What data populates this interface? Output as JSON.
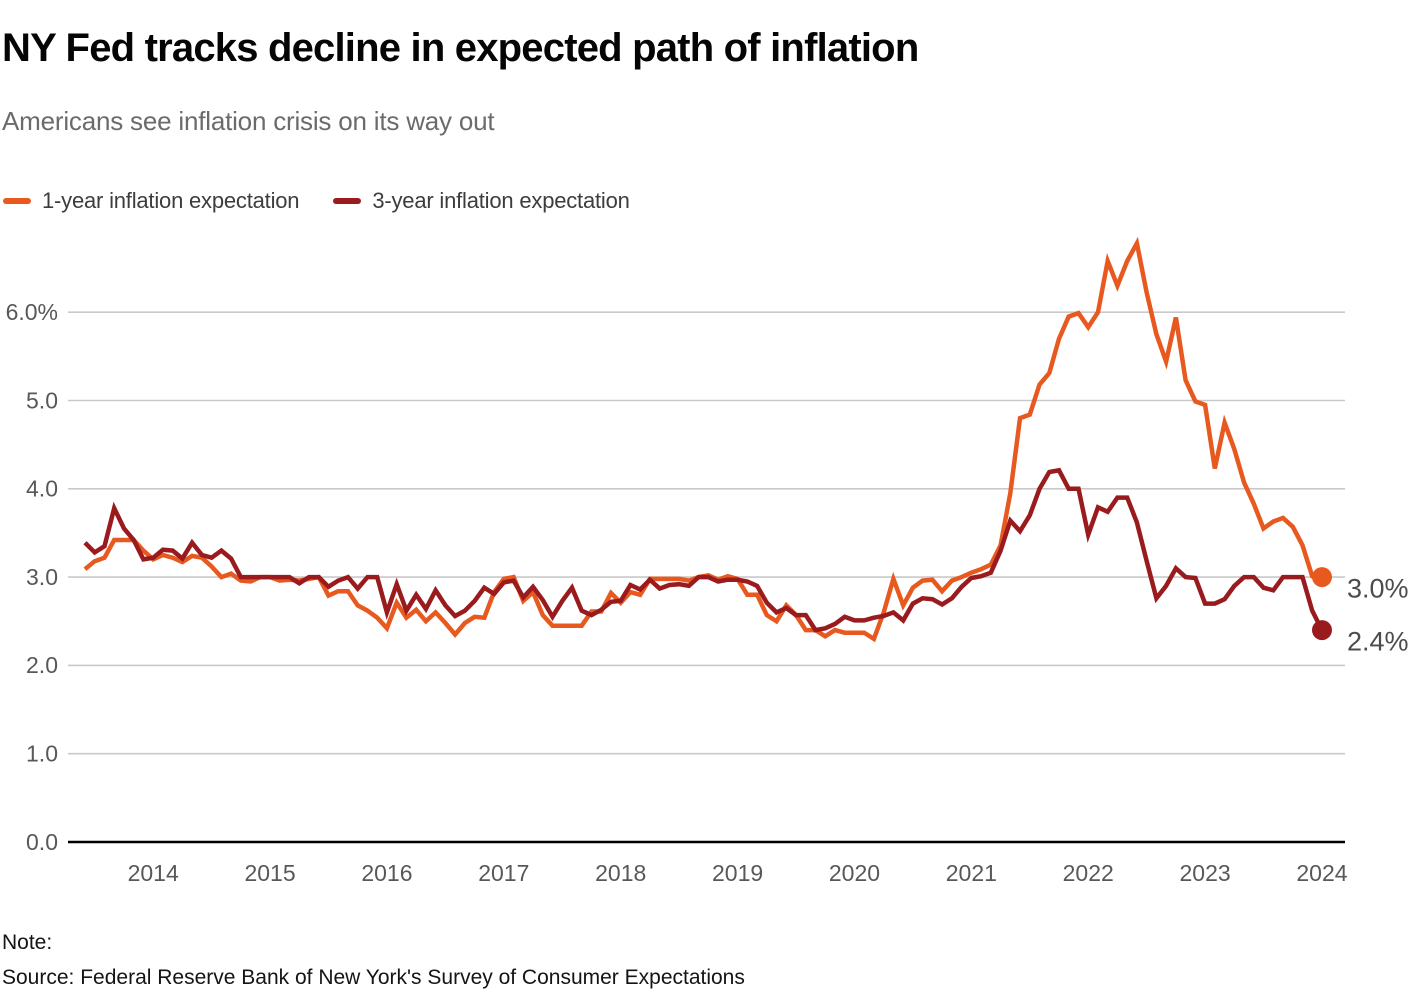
{
  "header": {
    "title": "NY Fed tracks decline in expected path of inflation",
    "subtitle": "Americans see inflation crisis on its way out"
  },
  "legend": [
    {
      "label": "1-year inflation expectation",
      "color": "#E8591F"
    },
    {
      "label": "3-year inflation expectation",
      "color": "#9A1B1E"
    }
  ],
  "chart_data": {
    "type": "line",
    "title": "NY Fed tracks decline in expected path of inflation",
    "subtitle": "Americans see inflation crisis on its way out",
    "frequency": "monthly",
    "x_start": "2013-06",
    "x_end": "2024-01",
    "xlabel": "",
    "ylabel": "",
    "ylim": [
      0,
      6.9
    ],
    "grid": true,
    "y_ticks": [
      {
        "label": "6.0%",
        "value": 6
      },
      {
        "label": "5.0",
        "value": 5
      },
      {
        "label": "4.0",
        "value": 4
      },
      {
        "label": "3.0",
        "value": 3
      },
      {
        "label": "2.0",
        "value": 2
      },
      {
        "label": "1.0",
        "value": 1
      },
      {
        "label": "0.0",
        "value": 0
      }
    ],
    "x_tick_years": [
      "2014",
      "2015",
      "2016",
      "2017",
      "2018",
      "2019",
      "2020",
      "2021",
      "2022",
      "2023",
      "2024"
    ],
    "series": [
      {
        "name": "1-year inflation expectation",
        "color": "#E8591F",
        "end_label": "3.0%",
        "values": [
          3.09,
          3.18,
          3.22,
          3.42,
          3.42,
          3.42,
          3.3,
          3.2,
          3.25,
          3.22,
          3.17,
          3.24,
          3.22,
          3.12,
          3.0,
          3.04,
          2.96,
          2.95,
          3.0,
          3.0,
          2.96,
          2.97,
          2.96,
          2.98,
          3.0,
          2.79,
          2.84,
          2.84,
          2.68,
          2.62,
          2.54,
          2.42,
          2.71,
          2.54,
          2.63,
          2.5,
          2.6,
          2.48,
          2.35,
          2.48,
          2.55,
          2.54,
          2.83,
          2.98,
          3.0,
          2.73,
          2.83,
          2.57,
          2.45,
          2.45,
          2.45,
          2.45,
          2.61,
          2.61,
          2.82,
          2.71,
          2.83,
          2.8,
          2.98,
          2.98,
          2.98,
          2.98,
          2.96,
          3.0,
          3.02,
          2.97,
          3.01,
          2.98,
          2.8,
          2.8,
          2.57,
          2.5,
          2.68,
          2.57,
          2.4,
          2.4,
          2.33,
          2.4,
          2.37,
          2.37,
          2.37,
          2.3,
          2.6,
          2.98,
          2.68,
          2.88,
          2.96,
          2.97,
          2.84,
          2.96,
          3.0,
          3.05,
          3.09,
          3.14,
          3.36,
          3.95,
          4.8,
          4.84,
          5.18,
          5.31,
          5.7,
          5.95,
          5.99,
          5.83,
          6.0,
          6.58,
          6.3,
          6.58,
          6.78,
          6.22,
          5.75,
          5.44,
          5.94,
          5.23,
          4.99,
          4.95,
          4.23,
          4.75,
          4.45,
          4.07,
          3.83,
          3.55,
          3.63,
          3.67,
          3.57,
          3.36,
          3.01,
          3.0
        ]
      },
      {
        "name": "3-year inflation expectation",
        "color": "#9A1B1E",
        "end_label": "2.4%",
        "values": [
          3.39,
          3.28,
          3.35,
          3.78,
          3.55,
          3.42,
          3.2,
          3.22,
          3.31,
          3.3,
          3.21,
          3.39,
          3.25,
          3.22,
          3.3,
          3.21,
          3.0,
          3.0,
          3.0,
          3.0,
          3.0,
          3.0,
          2.93,
          3.0,
          3.0,
          2.89,
          2.96,
          3.0,
          2.87,
          3.0,
          3.0,
          2.6,
          2.92,
          2.62,
          2.8,
          2.64,
          2.85,
          2.68,
          2.56,
          2.62,
          2.73,
          2.88,
          2.81,
          2.94,
          2.96,
          2.77,
          2.89,
          2.74,
          2.55,
          2.73,
          2.88,
          2.62,
          2.57,
          2.63,
          2.72,
          2.73,
          2.91,
          2.86,
          2.97,
          2.87,
          2.91,
          2.92,
          2.9,
          3.0,
          3.0,
          2.95,
          2.97,
          2.97,
          2.95,
          2.9,
          2.71,
          2.6,
          2.65,
          2.57,
          2.57,
          2.4,
          2.42,
          2.47,
          2.55,
          2.51,
          2.51,
          2.54,
          2.56,
          2.6,
          2.51,
          2.7,
          2.76,
          2.75,
          2.69,
          2.76,
          2.89,
          2.99,
          3.01,
          3.05,
          3.3,
          3.64,
          3.52,
          3.7,
          4.0,
          4.19,
          4.21,
          4.0,
          4.0,
          3.48,
          3.79,
          3.74,
          3.9,
          3.9,
          3.62,
          3.18,
          2.76,
          2.9,
          3.1,
          3.0,
          2.99,
          2.7,
          2.7,
          2.75,
          2.9,
          3.0,
          3.0,
          2.88,
          2.85,
          3.0,
          3.0,
          3.0,
          2.62,
          2.4
        ]
      }
    ]
  },
  "footer": {
    "note_label": "Note:",
    "source": "Source: Federal Reserve Bank of New York's Survey of Consumer Expectations"
  }
}
